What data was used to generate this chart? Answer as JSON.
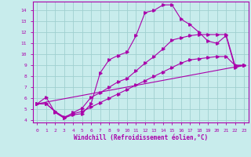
{
  "xlabel": "Windchill (Refroidissement éolien,°C)",
  "bg_color": "#c8ecec",
  "grid_color": "#a0d0d0",
  "line_color": "#aa00aa",
  "xlim": [
    -0.5,
    23.5
  ],
  "ylim": [
    3.8,
    14.8
  ],
  "xticks": [
    0,
    1,
    2,
    3,
    4,
    5,
    6,
    7,
    8,
    9,
    10,
    11,
    12,
    13,
    14,
    15,
    16,
    17,
    18,
    19,
    20,
    21,
    22,
    23
  ],
  "yticks": [
    4,
    5,
    6,
    7,
    8,
    9,
    10,
    11,
    12,
    13,
    14
  ],
  "curve1_x": [
    0,
    1,
    2,
    3,
    4,
    5,
    6,
    7,
    8,
    9,
    10,
    11,
    12,
    13,
    14,
    15,
    16,
    17,
    18,
    19,
    20,
    21,
    22,
    23
  ],
  "curve1_y": [
    5.5,
    6.1,
    4.7,
    4.2,
    4.5,
    4.6,
    5.5,
    8.3,
    9.5,
    9.9,
    10.2,
    11.7,
    13.8,
    14.0,
    14.5,
    14.5,
    13.2,
    12.7,
    12.0,
    11.2,
    11.0,
    11.7,
    8.8,
    9.0
  ],
  "curve2_x": [
    0,
    1,
    2,
    3,
    4,
    5,
    6,
    7,
    8,
    9,
    10,
    11,
    12,
    13,
    14,
    15,
    16,
    17,
    18,
    19,
    20,
    21,
    22,
    23
  ],
  "curve2_y": [
    5.5,
    5.5,
    4.8,
    4.2,
    4.7,
    5.1,
    6.1,
    6.5,
    7.0,
    7.5,
    7.8,
    8.5,
    9.2,
    9.8,
    10.5,
    11.3,
    11.5,
    11.7,
    11.8,
    11.8,
    11.8,
    11.8,
    9.0,
    9.0
  ],
  "curve3_x": [
    0,
    1,
    2,
    3,
    4,
    5,
    6,
    7,
    8,
    9,
    10,
    11,
    12,
    13,
    14,
    15,
    16,
    17,
    18,
    19,
    20,
    21,
    22,
    23
  ],
  "curve3_y": [
    5.5,
    5.5,
    4.8,
    4.3,
    4.6,
    4.8,
    5.2,
    5.6,
    6.0,
    6.4,
    6.8,
    7.2,
    7.6,
    8.0,
    8.4,
    8.8,
    9.2,
    9.5,
    9.6,
    9.7,
    9.8,
    9.8,
    9.0,
    9.0
  ],
  "curve4_x": [
    0,
    23
  ],
  "curve4_y": [
    5.5,
    9.0
  ]
}
